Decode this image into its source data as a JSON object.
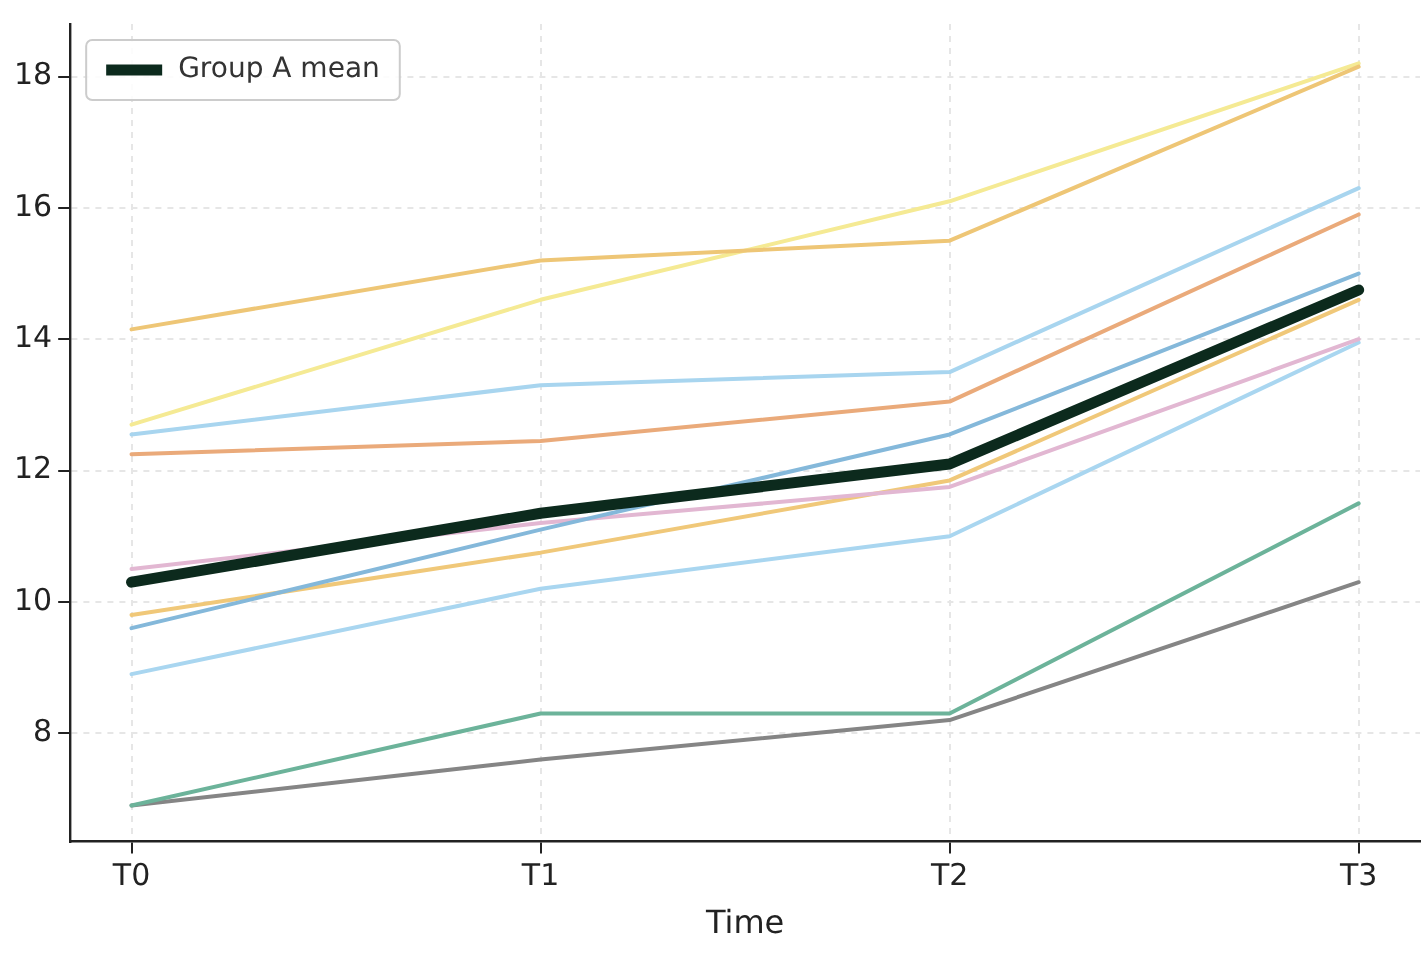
{
  "chart_data": {
    "type": "line",
    "xlabel": "Time",
    "categories": [
      "T0",
      "T1",
      "T2",
      "T3"
    ],
    "ylim": [
      6.35,
      18.8
    ],
    "yticks": [
      8,
      10,
      12,
      14,
      16,
      18
    ],
    "grid": true,
    "legend": "top left",
    "marker": "none",
    "line_style": "solid",
    "series": [
      {
        "color": "#eec676",
        "values": [
          14.15,
          15.2,
          15.5,
          18.15
        ]
      },
      {
        "color": "#f5ea94",
        "values": [
          12.7,
          14.6,
          16.1,
          18.2
        ]
      },
      {
        "color": "#a8d5ef",
        "values": [
          12.55,
          13.3,
          13.5,
          16.3
        ]
      },
      {
        "color": "#eaaa7a",
        "values": [
          12.25,
          12.45,
          13.05,
          15.9
        ]
      },
      {
        "color": "#84b8da",
        "values": [
          9.6,
          11.1,
          12.55,
          15.0
        ]
      },
      {
        "color": "#e2b7d2",
        "values": [
          10.5,
          11.2,
          11.75,
          14.0
        ]
      },
      {
        "color": "#f0c879",
        "values": [
          9.8,
          10.75,
          11.85,
          14.6
        ]
      },
      {
        "color": "#a9d6f0",
        "values": [
          8.9,
          10.2,
          11.0,
          13.95
        ]
      },
      {
        "color": "#6cb39a",
        "values": [
          6.9,
          8.3,
          8.3,
          11.5
        ]
      },
      {
        "color": "#858585",
        "values": [
          6.9,
          7.6,
          8.2,
          10.3
        ]
      },
      {
        "name": "Group A mean",
        "color": "#0c2a1d",
        "values": [
          10.3,
          11.35,
          12.1,
          14.75
        ]
      }
    ]
  }
}
